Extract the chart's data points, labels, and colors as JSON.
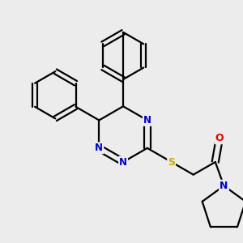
{
  "bg_color": "#ececec",
  "atom_colors": {
    "C": "#000000",
    "N": "#0000cc",
    "S": "#ccaa00",
    "O": "#ee0000"
  },
  "bond_color": "#000000",
  "bond_width": 1.6,
  "font_size_atom": 8.5
}
